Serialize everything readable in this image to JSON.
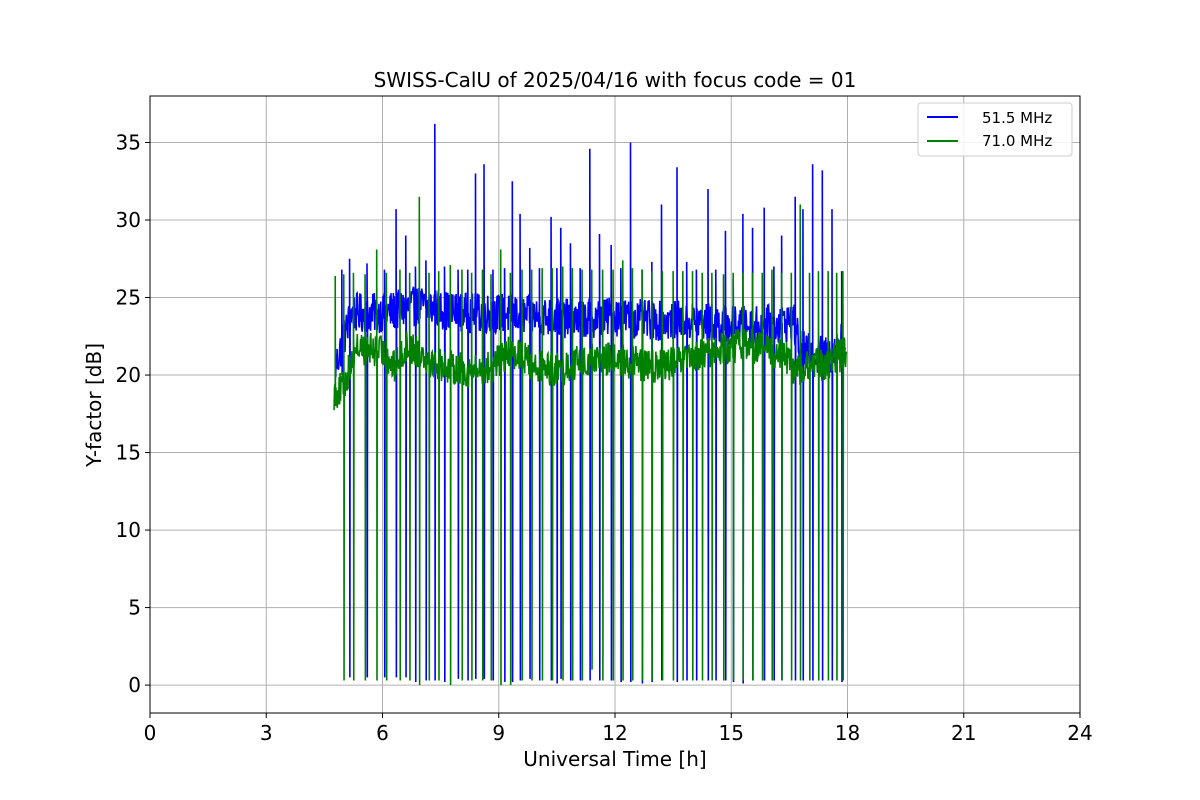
{
  "chart_data": {
    "type": "line",
    "title": "SWISS-CalU of 2025/04/16 with focus code = 01",
    "xlabel": "Universal Time [h]",
    "ylabel": "Y-factor [dB]",
    "xlim": [
      0,
      24
    ],
    "ylim": [
      -1.8,
      38
    ],
    "x_ticks": [
      0,
      3,
      6,
      9,
      12,
      15,
      18,
      21,
      24
    ],
    "y_ticks": [
      0,
      5,
      10,
      15,
      20,
      25,
      30,
      35
    ],
    "grid": true,
    "legend_position": "upper right",
    "series": [
      {
        "name": "51.5 MHz",
        "color": "#0000ff",
        "x_start": 4.78,
        "x_end": 17.95,
        "baseline": [
          [
            4.78,
            20.5
          ],
          [
            5.2,
            24
          ],
          [
            6.0,
            24
          ],
          [
            7.0,
            24.5
          ],
          [
            8.0,
            24
          ],
          [
            9.0,
            24
          ],
          [
            10.0,
            23.8
          ],
          [
            11.0,
            23.6
          ],
          [
            12.0,
            23.8
          ],
          [
            13.0,
            23.5
          ],
          [
            14.0,
            23.5
          ],
          [
            15.0,
            23.2
          ],
          [
            16.0,
            23.2
          ],
          [
            16.6,
            23.5
          ],
          [
            16.8,
            21.5
          ],
          [
            17.5,
            21.2
          ],
          [
            17.95,
            22.5
          ]
        ],
        "cal_spikes": [
          [
            4.95,
            26.8,
            20.0
          ],
          [
            5.15,
            27.5,
            0.5
          ],
          [
            5.6,
            27.2,
            0.5
          ],
          [
            6.05,
            26.8,
            0.5
          ],
          [
            6.35,
            30.7,
            0.5
          ],
          [
            6.6,
            29.0,
            0.5
          ],
          [
            6.85,
            27.0,
            0.2
          ],
          [
            7.12,
            27.4,
            0.3
          ],
          [
            7.35,
            36.2,
            0.3
          ],
          [
            7.6,
            27.0,
            0.2
          ],
          [
            7.95,
            26.8,
            0.4
          ],
          [
            8.2,
            26.8,
            0.3
          ],
          [
            8.4,
            33.0,
            0.4
          ],
          [
            8.62,
            33.6,
            0.4
          ],
          [
            8.85,
            26.8,
            0.3
          ],
          [
            9.15,
            26.9,
            0.2
          ],
          [
            9.35,
            32.5,
            0.2
          ],
          [
            9.55,
            30.4,
            0.3
          ],
          [
            9.8,
            28.2,
            0.4
          ],
          [
            10.05,
            26.9,
            0.3
          ],
          [
            10.35,
            30.2,
            0.3
          ],
          [
            10.5,
            26.9,
            0.1
          ],
          [
            10.6,
            29.5,
            0.4
          ],
          [
            10.85,
            28.5,
            0.3
          ],
          [
            11.1,
            26.9,
            0.3
          ],
          [
            11.35,
            34.6,
            0.3
          ],
          [
            11.6,
            29.1,
            0.3
          ],
          [
            11.9,
            28.4,
            0.3
          ],
          [
            12.15,
            26.9,
            0.2
          ],
          [
            12.4,
            35.0,
            0.2
          ],
          [
            12.7,
            26.8,
            0.1
          ],
          [
            12.95,
            27.3,
            0.2
          ],
          [
            13.2,
            31.0,
            0.3
          ],
          [
            13.6,
            33.4,
            0.2
          ],
          [
            13.85,
            27.3,
            0.3
          ],
          [
            14.1,
            26.8,
            0.3
          ],
          [
            14.4,
            32.0,
            0.3
          ],
          [
            14.6,
            26.8,
            0.3
          ],
          [
            14.85,
            29.3,
            0.3
          ],
          [
            15.05,
            26.2,
            0.2
          ],
          [
            15.3,
            30.4,
            0.1
          ],
          [
            15.55,
            29.5,
            0.3
          ],
          [
            15.85,
            30.8,
            0.3
          ],
          [
            16.1,
            27.0,
            0.3
          ],
          [
            16.3,
            29.0,
            0.3
          ],
          [
            16.65,
            31.5,
            0.3
          ],
          [
            16.85,
            30.7,
            0.3
          ],
          [
            17.1,
            33.6,
            0.3
          ],
          [
            17.35,
            33.2,
            0.3
          ],
          [
            17.6,
            30.7,
            0.3
          ],
          [
            17.85,
            26.7,
            0.2
          ]
        ]
      },
      {
        "name": "71.0 MHz",
        "color": "#008000",
        "x_start": 4.75,
        "x_end": 17.98,
        "baseline": [
          [
            4.75,
            18.8
          ],
          [
            5.0,
            19.2
          ],
          [
            5.3,
            21.8
          ],
          [
            6.0,
            21.5
          ],
          [
            6.3,
            20.5
          ],
          [
            6.6,
            21.8
          ],
          [
            7.0,
            21.5
          ],
          [
            7.3,
            20.8
          ],
          [
            7.8,
            20.5
          ],
          [
            8.3,
            20.2
          ],
          [
            8.8,
            20.5
          ],
          [
            9.3,
            21.5
          ],
          [
            9.6,
            21.2
          ],
          [
            10.0,
            20.5
          ],
          [
            10.6,
            20.3
          ],
          [
            11.0,
            20.8
          ],
          [
            11.5,
            21.0
          ],
          [
            12.0,
            21.0
          ],
          [
            12.5,
            20.8
          ],
          [
            13.0,
            20.5
          ],
          [
            13.5,
            20.8
          ],
          [
            14.0,
            21.0
          ],
          [
            14.5,
            21.5
          ],
          [
            15.0,
            21.8
          ],
          [
            15.5,
            22.0
          ],
          [
            16.0,
            21.5
          ],
          [
            16.4,
            21.3
          ],
          [
            16.6,
            20.3
          ],
          [
            17.0,
            20.5
          ],
          [
            17.5,
            20.8
          ],
          [
            17.98,
            21.5
          ]
        ],
        "cal_spikes": [
          [
            4.78,
            26.4,
            18.4
          ],
          [
            5.0,
            26.5,
            0.3
          ],
          [
            5.25,
            26.6,
            0.3
          ],
          [
            5.55,
            26.5,
            0.3
          ],
          [
            5.85,
            28.1,
            0.3
          ],
          [
            6.1,
            26.6,
            0.3
          ],
          [
            6.45,
            26.8,
            0.3
          ],
          [
            6.7,
            26.6,
            0.3
          ],
          [
            6.95,
            31.5,
            0.0
          ],
          [
            7.2,
            26.6,
            0.3
          ],
          [
            7.45,
            26.7,
            0.3
          ],
          [
            7.75,
            27.1,
            0.0
          ],
          [
            8.05,
            26.8,
            0.3
          ],
          [
            8.3,
            26.6,
            0.3
          ],
          [
            8.58,
            26.8,
            0.3
          ],
          [
            8.8,
            26.5,
            0.3
          ],
          [
            9.05,
            28.1,
            0.0
          ],
          [
            9.3,
            26.6,
            0.0
          ],
          [
            9.6,
            26.8,
            0.3
          ],
          [
            9.85,
            26.8,
            0.3
          ],
          [
            10.12,
            26.9,
            0.3
          ],
          [
            10.38,
            26.9,
            0.3
          ],
          [
            10.65,
            27.0,
            0.3
          ],
          [
            10.9,
            26.9,
            0.3
          ],
          [
            11.15,
            26.8,
            0.3
          ],
          [
            11.4,
            26.8,
            1.0
          ],
          [
            11.68,
            26.8,
            0.3
          ],
          [
            11.95,
            26.8,
            0.3
          ],
          [
            12.2,
            27.4,
            0.3
          ],
          [
            12.45,
            26.9,
            0.3
          ],
          [
            12.7,
            26.8,
            0.3
          ],
          [
            12.95,
            26.7,
            0.3
          ],
          [
            13.22,
            26.7,
            0.3
          ],
          [
            13.5,
            26.7,
            0.3
          ],
          [
            13.75,
            26.7,
            0.3
          ],
          [
            14.0,
            26.7,
            0.3
          ],
          [
            14.25,
            26.6,
            0.3
          ],
          [
            14.5,
            26.6,
            0.3
          ],
          [
            14.8,
            26.5,
            0.3
          ],
          [
            15.05,
            26.6,
            0.3
          ],
          [
            15.3,
            26.6,
            0.3
          ],
          [
            15.55,
            26.6,
            0.3
          ],
          [
            15.8,
            26.6,
            0.3
          ],
          [
            16.05,
            26.8,
            0.3
          ],
          [
            16.3,
            26.6,
            0.3
          ],
          [
            16.55,
            26.6,
            0.3
          ],
          [
            16.78,
            31.0,
            0.3
          ],
          [
            17.02,
            26.6,
            0.3
          ],
          [
            17.25,
            26.7,
            0.3
          ],
          [
            17.5,
            26.7,
            0.3
          ],
          [
            17.72,
            26.6,
            0.3
          ],
          [
            17.88,
            26.7,
            0.3
          ]
        ]
      }
    ]
  }
}
